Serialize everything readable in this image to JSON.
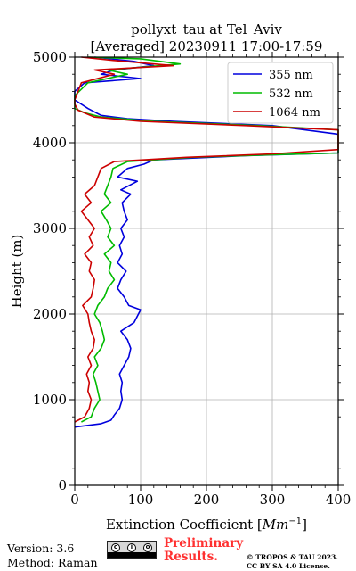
{
  "chart_data": {
    "type": "line",
    "title": "pollyxt_tau at Tel_Aviv",
    "subtitle": "[Averaged] 20230911 17:00-17:59",
    "xlabel": "Extinction Coefficient [",
    "xlabel_unit_base": "Mm",
    "xlabel_unit_exp": "−1",
    "xlabel_close": "]",
    "ylabel": "Height (m)",
    "xlim": [
      0,
      400
    ],
    "ylim": [
      0,
      5000
    ],
    "x_ticks": [
      0,
      100,
      200,
      300,
      400
    ],
    "y_ticks": [
      0,
      1000,
      2000,
      3000,
      4000,
      5000
    ],
    "x_tick_labels": [
      "0",
      "100",
      "200",
      "300",
      "400"
    ],
    "y_tick_labels": [
      "0",
      "1000",
      "2000",
      "3000",
      "4000",
      "5000"
    ],
    "grid": true,
    "legend_position": "top-right",
    "series": [
      {
        "name": "355 nm",
        "color": "#0000dd",
        "points": [
          [
            0,
            680
          ],
          [
            20,
            700
          ],
          [
            40,
            720
          ],
          [
            55,
            760
          ],
          [
            60,
            820
          ],
          [
            68,
            900
          ],
          [
            72,
            1000
          ],
          [
            70,
            1100
          ],
          [
            72,
            1200
          ],
          [
            68,
            1300
          ],
          [
            75,
            1400
          ],
          [
            82,
            1500
          ],
          [
            85,
            1600
          ],
          [
            80,
            1700
          ],
          [
            70,
            1800
          ],
          [
            90,
            1900
          ],
          [
            100,
            2050
          ],
          [
            82,
            2100
          ],
          [
            75,
            2200
          ],
          [
            65,
            2300
          ],
          [
            70,
            2400
          ],
          [
            78,
            2500
          ],
          [
            65,
            2600
          ],
          [
            72,
            2700
          ],
          [
            68,
            2800
          ],
          [
            75,
            2900
          ],
          [
            70,
            3000
          ],
          [
            80,
            3100
          ],
          [
            75,
            3200
          ],
          [
            72,
            3300
          ],
          [
            85,
            3400
          ],
          [
            70,
            3450
          ],
          [
            95,
            3550
          ],
          [
            65,
            3600
          ],
          [
            80,
            3700
          ],
          [
            105,
            3750
          ],
          [
            120,
            3800
          ],
          [
            260,
            3850
          ],
          [
            400,
            3880
          ],
          [
            400,
            4100
          ],
          [
            300,
            4200
          ],
          [
            150,
            4250
          ],
          [
            80,
            4280
          ],
          [
            40,
            4320
          ],
          [
            20,
            4400
          ],
          [
            0,
            4500
          ],
          [
            0,
            4600
          ],
          [
            15,
            4700
          ],
          [
            100,
            4750
          ],
          [
            40,
            4800
          ],
          [
            60,
            4850
          ],
          [
            120,
            4900
          ],
          [
            90,
            4950
          ],
          [
            30,
            5000
          ]
        ]
      },
      {
        "name": "532 nm",
        "color": "#00bb00",
        "points": [
          [
            10,
            740
          ],
          [
            25,
            800
          ],
          [
            30,
            900
          ],
          [
            38,
            1000
          ],
          [
            35,
            1100
          ],
          [
            32,
            1200
          ],
          [
            28,
            1300
          ],
          [
            35,
            1400
          ],
          [
            30,
            1500
          ],
          [
            40,
            1600
          ],
          [
            45,
            1700
          ],
          [
            42,
            1800
          ],
          [
            38,
            1900
          ],
          [
            30,
            2000
          ],
          [
            35,
            2100
          ],
          [
            45,
            2200
          ],
          [
            50,
            2300
          ],
          [
            60,
            2400
          ],
          [
            52,
            2500
          ],
          [
            55,
            2600
          ],
          [
            45,
            2700
          ],
          [
            60,
            2800
          ],
          [
            50,
            2900
          ],
          [
            55,
            3000
          ],
          [
            48,
            3100
          ],
          [
            40,
            3200
          ],
          [
            55,
            3300
          ],
          [
            45,
            3400
          ],
          [
            50,
            3500
          ],
          [
            55,
            3600
          ],
          [
            58,
            3700
          ],
          [
            80,
            3780
          ],
          [
            180,
            3830
          ],
          [
            300,
            3860
          ],
          [
            400,
            3880
          ],
          [
            400,
            4150
          ],
          [
            280,
            4200
          ],
          [
            120,
            4250
          ],
          [
            40,
            4300
          ],
          [
            15,
            4350
          ],
          [
            0,
            4400
          ],
          [
            0,
            4550
          ],
          [
            20,
            4700
          ],
          [
            80,
            4800
          ],
          [
            50,
            4850
          ],
          [
            160,
            4920
          ],
          [
            100,
            4980
          ],
          [
            20,
            5000
          ]
        ]
      },
      {
        "name": "1064 nm",
        "color": "#cc0000",
        "points": [
          [
            0,
            740
          ],
          [
            15,
            800
          ],
          [
            22,
            900
          ],
          [
            25,
            1000
          ],
          [
            20,
            1100
          ],
          [
            22,
            1200
          ],
          [
            18,
            1300
          ],
          [
            25,
            1400
          ],
          [
            20,
            1500
          ],
          [
            28,
            1600
          ],
          [
            30,
            1700
          ],
          [
            25,
            1800
          ],
          [
            22,
            1900
          ],
          [
            20,
            2000
          ],
          [
            12,
            2100
          ],
          [
            25,
            2200
          ],
          [
            28,
            2300
          ],
          [
            30,
            2400
          ],
          [
            22,
            2500
          ],
          [
            25,
            2600
          ],
          [
            15,
            2700
          ],
          [
            28,
            2800
          ],
          [
            22,
            2900
          ],
          [
            30,
            3000
          ],
          [
            20,
            3100
          ],
          [
            10,
            3200
          ],
          [
            25,
            3300
          ],
          [
            15,
            3400
          ],
          [
            30,
            3500
          ],
          [
            35,
            3600
          ],
          [
            40,
            3700
          ],
          [
            60,
            3780
          ],
          [
            170,
            3830
          ],
          [
            300,
            3870
          ],
          [
            400,
            3920
          ],
          [
            400,
            4150
          ],
          [
            260,
            4200
          ],
          [
            100,
            4250
          ],
          [
            30,
            4300
          ],
          [
            5,
            4380
          ],
          [
            0,
            4450
          ],
          [
            0,
            4500
          ],
          [
            10,
            4700
          ],
          [
            60,
            4800
          ],
          [
            30,
            4850
          ],
          [
            150,
            4900
          ],
          [
            60,
            4960
          ],
          [
            10,
            5000
          ]
        ]
      }
    ]
  },
  "footer": {
    "version": "Version: 3.6",
    "method": "Method: Raman",
    "license_badge": "cc by sa",
    "preliminary_line1": "Preliminary",
    "preliminary_line2": "Results.",
    "copyright": "© TROPOS & TAU 2023.",
    "license_text": "CC BY SA 4.0 License."
  }
}
